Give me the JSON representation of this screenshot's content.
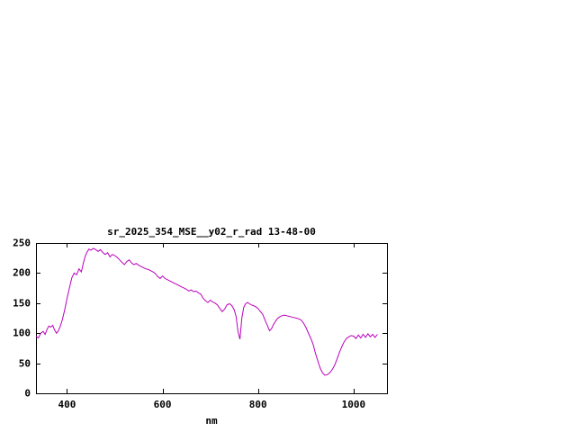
{
  "chart_data": {
    "type": "line",
    "title": "sr_2025_354_MSE__y02_r_rad 13-48-00",
    "xlabel": "nm",
    "ylabel": "",
    "xlim": [
      335,
      1070
    ],
    "ylim": [
      0,
      250
    ],
    "xticks": [
      400,
      600,
      800,
      1000
    ],
    "xtick_labels": [
      "400",
      "600",
      "800",
      "1000"
    ],
    "yticks": [
      0,
      50,
      100,
      150,
      200,
      250
    ],
    "ytick_labels": [
      "0",
      "50",
      "100",
      "150",
      "200",
      "250"
    ],
    "grid": false,
    "legend": "none",
    "line_color": "#bb00bb",
    "axis_color": "#000000",
    "background_color": "#ffffff",
    "x": [
      335,
      340,
      345,
      350,
      354,
      358,
      362,
      366,
      370,
      374,
      378,
      382,
      386,
      390,
      395,
      400,
      405,
      410,
      415,
      420,
      425,
      430,
      434,
      438,
      442,
      446,
      450,
      455,
      460,
      465,
      470,
      475,
      480,
      485,
      490,
      495,
      500,
      505,
      510,
      515,
      520,
      525,
      530,
      535,
      540,
      545,
      550,
      555,
      560,
      565,
      570,
      575,
      580,
      585,
      590,
      595,
      600,
      605,
      610,
      615,
      620,
      625,
      630,
      635,
      640,
      645,
      650,
      655,
      660,
      665,
      670,
      675,
      680,
      685,
      690,
      695,
      700,
      705,
      710,
      715,
      720,
      725,
      730,
      735,
      740,
      745,
      750,
      754,
      758,
      762,
      766,
      770,
      774,
      778,
      782,
      786,
      790,
      795,
      800,
      805,
      810,
      815,
      820,
      824,
      828,
      832,
      836,
      840,
      845,
      850,
      855,
      860,
      865,
      870,
      875,
      880,
      885,
      890,
      895,
      900,
      905,
      910,
      915,
      920,
      925,
      930,
      935,
      940,
      945,
      950,
      955,
      960,
      965,
      970,
      975,
      980,
      985,
      990,
      995,
      1000,
      1005,
      1010,
      1015,
      1020,
      1025,
      1030,
      1035,
      1040,
      1045,
      1050
    ],
    "values": [
      95,
      92,
      100,
      103,
      98,
      106,
      112,
      110,
      113,
      105,
      100,
      104,
      112,
      122,
      138,
      158,
      175,
      192,
      200,
      197,
      207,
      202,
      216,
      228,
      235,
      240,
      238,
      241,
      239,
      236,
      239,
      234,
      231,
      234,
      227,
      231,
      229,
      226,
      222,
      218,
      214,
      219,
      222,
      217,
      214,
      216,
      213,
      211,
      209,
      207,
      206,
      204,
      202,
      199,
      194,
      191,
      195,
      191,
      189,
      187,
      185,
      183,
      181,
      179,
      177,
      175,
      173,
      170,
      172,
      169,
      170,
      167,
      165,
      158,
      154,
      151,
      155,
      152,
      150,
      147,
      141,
      136,
      140,
      147,
      149,
      146,
      139,
      128,
      103,
      90,
      125,
      143,
      149,
      151,
      149,
      147,
      146,
      144,
      141,
      136,
      131,
      121,
      112,
      104,
      107,
      114,
      119,
      124,
      127,
      129,
      130,
      129,
      128,
      127,
      126,
      125,
      124,
      122,
      117,
      110,
      101,
      92,
      82,
      67,
      54,
      42,
      34,
      30,
      31,
      34,
      39,
      46,
      56,
      67,
      77,
      85,
      91,
      94,
      96,
      95,
      91,
      97,
      92,
      98,
      93,
      99,
      94,
      98,
      93,
      98
    ]
  }
}
